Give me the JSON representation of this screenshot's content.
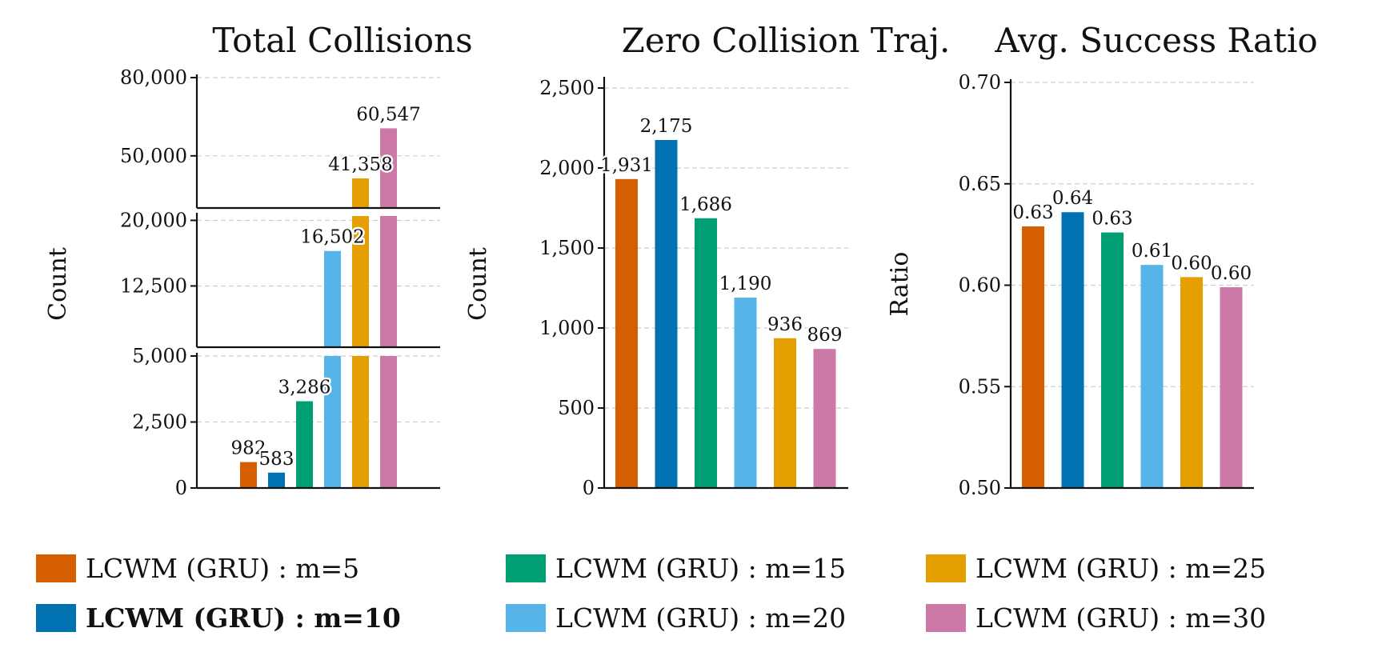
{
  "legend": [
    {
      "label": "LCWM (GRU) : m=5",
      "color": "#D55E00",
      "bold": false
    },
    {
      "label": "LCWM (GRU) : m=10",
      "color": "#0072B2",
      "bold": true
    },
    {
      "label": "LCWM (GRU) : m=15",
      "color": "#009E73",
      "bold": false
    },
    {
      "label": "LCWM (GRU) : m=20",
      "color": "#56B4E9",
      "bold": false
    },
    {
      "label": "LCWM (GRU) : m=25",
      "color": "#E69F00",
      "bold": false
    },
    {
      "label": "LCWM (GRU) : m=30",
      "color": "#CC79A7",
      "bold": false
    }
  ],
  "chart_data": [
    {
      "type": "bar",
      "title": "Total Collisions",
      "ylabel": "Count",
      "broken_axis": true,
      "segments": [
        {
          "ylim": [
            30000,
            80000
          ],
          "ticks": [
            50000,
            80000
          ],
          "tick_labels": [
            "50,000",
            "80,000"
          ]
        },
        {
          "ylim": [
            5500,
            20500
          ],
          "ticks": [
            12500,
            20000
          ],
          "tick_labels": [
            "12,500",
            "20,000"
          ]
        },
        {
          "ylim": [
            0,
            5000
          ],
          "ticks": [
            0,
            2500,
            5000
          ],
          "tick_labels": [
            "0",
            "2,500",
            "5,000"
          ]
        }
      ],
      "categories": [
        "m=5",
        "m=10",
        "m=15",
        "m=20",
        "m=25",
        "m=30"
      ],
      "values": [
        982,
        583,
        3286,
        16502,
        41358,
        60547
      ],
      "value_labels": [
        "982",
        "583",
        "3,286",
        "16,502",
        "41,358",
        "60,547"
      ]
    },
    {
      "type": "bar",
      "title": "Zero Collision Traj.",
      "ylabel": "Count",
      "ylim": [
        0,
        2550
      ],
      "ticks": [
        0,
        500,
        1000,
        1500,
        2000,
        2500
      ],
      "tick_labels": [
        "0",
        "500",
        "1,000",
        "1,500",
        "2,000",
        "2,500"
      ],
      "categories": [
        "m=5",
        "m=10",
        "m=15",
        "m=20",
        "m=25",
        "m=30"
      ],
      "values": [
        1931,
        2175,
        1686,
        1190,
        936,
        869
      ],
      "value_labels": [
        "1,931",
        "2,175",
        "1,686",
        "1,190",
        "936",
        "869"
      ]
    },
    {
      "type": "bar",
      "title": "Avg. Success Ratio",
      "ylabel": "Ratio",
      "ylim": [
        0.5,
        0.7
      ],
      "ticks": [
        0.5,
        0.55,
        0.6,
        0.65,
        0.7
      ],
      "tick_labels": [
        "0.50",
        "0.55",
        "0.60",
        "0.65",
        "0.70"
      ],
      "categories": [
        "m=5",
        "m=10",
        "m=15",
        "m=20",
        "m=25",
        "m=30"
      ],
      "values": [
        0.629,
        0.636,
        0.626,
        0.61,
        0.604,
        0.599
      ],
      "value_labels": [
        "0.63",
        "0.64",
        "0.63",
        "0.61",
        "0.60",
        "0.60"
      ]
    }
  ]
}
